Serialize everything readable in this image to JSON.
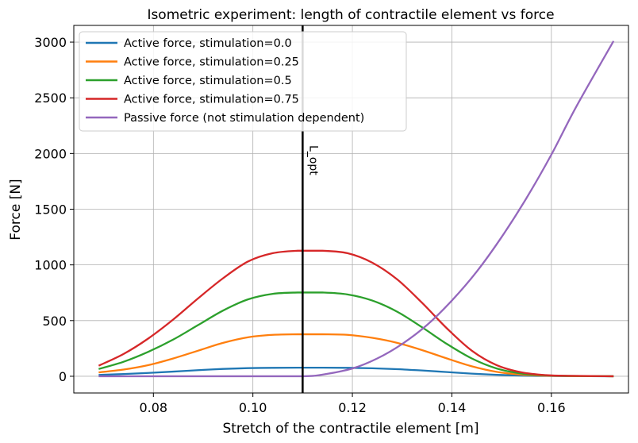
{
  "chart_data": {
    "type": "line",
    "title": "Isometric experiment: length of contractile element vs force",
    "xlabel": "Stretch of the contractile element [m]",
    "ylabel": "Force [N]",
    "xlim": [
      0.064,
      0.1755
    ],
    "ylim": [
      -150,
      3150
    ],
    "xticks": [
      0.08,
      0.1,
      0.12,
      0.14,
      0.16
    ],
    "xtick_labels": [
      "0.08",
      "0.10",
      "0.12",
      "0.14",
      "0.16"
    ],
    "yticks": [
      0,
      500,
      1000,
      1500,
      2000,
      2500,
      3000
    ],
    "ytick_labels": [
      "0",
      "500",
      "1000",
      "1500",
      "2000",
      "2500",
      "3000"
    ],
    "grid": true,
    "legend_position": "top-left",
    "vline": {
      "x": 0.11,
      "label": "L_opt",
      "color": "#000000"
    },
    "series": [
      {
        "name": "Active force, stimulation=0.0",
        "color": "#1f77b4",
        "x": [
          0.069,
          0.074,
          0.079,
          0.084,
          0.089,
          0.094,
          0.099,
          0.104,
          0.109,
          0.114,
          0.119,
          0.124,
          0.129,
          0.134,
          0.139,
          0.144,
          0.149,
          0.154,
          0.159,
          0.164,
          0.1725
        ],
        "y": [
          12,
          20,
          30,
          42,
          55,
          66,
          73,
          76,
          77,
          77,
          76,
          72,
          64,
          52,
          38,
          24,
          13,
          6,
          3,
          1,
          0
        ]
      },
      {
        "name": "Active force, stimulation=0.25",
        "color": "#ff7f0e",
        "x": [
          0.069,
          0.074,
          0.079,
          0.084,
          0.089,
          0.094,
          0.099,
          0.104,
          0.109,
          0.114,
          0.119,
          0.124,
          0.129,
          0.134,
          0.139,
          0.144,
          0.149,
          0.154,
          0.159,
          0.164,
          0.1725
        ],
        "y": [
          35,
          60,
          100,
          160,
          230,
          300,
          350,
          372,
          377,
          377,
          372,
          345,
          300,
          235,
          160,
          90,
          40,
          15,
          5,
          2,
          0
        ]
      },
      {
        "name": "Active force, stimulation=0.5",
        "color": "#2ca02c",
        "x": [
          0.069,
          0.074,
          0.079,
          0.084,
          0.089,
          0.094,
          0.099,
          0.104,
          0.109,
          0.114,
          0.119,
          0.124,
          0.129,
          0.134,
          0.139,
          0.144,
          0.149,
          0.154,
          0.159,
          0.164,
          0.1725
        ],
        "y": [
          65,
          130,
          220,
          330,
          460,
          590,
          690,
          740,
          752,
          752,
          735,
          680,
          580,
          440,
          290,
          160,
          70,
          25,
          8,
          3,
          0
        ]
      },
      {
        "name": "Active force, stimulation=0.75",
        "color": "#d62728",
        "x": [
          0.069,
          0.074,
          0.079,
          0.084,
          0.089,
          0.094,
          0.099,
          0.104,
          0.109,
          0.114,
          0.119,
          0.124,
          0.129,
          0.134,
          0.139,
          0.144,
          0.149,
          0.154,
          0.159,
          0.164,
          0.1725
        ],
        "y": [
          95,
          200,
          340,
          510,
          700,
          880,
          1030,
          1105,
          1127,
          1127,
          1105,
          1020,
          870,
          660,
          430,
          230,
          100,
          35,
          10,
          4,
          0
        ]
      },
      {
        "name": "Passive force (not stimulation dependent)",
        "color": "#9467bd",
        "x": [
          0.069,
          0.08,
          0.09,
          0.1,
          0.11,
          0.114,
          0.12,
          0.125,
          0.13,
          0.135,
          0.14,
          0.145,
          0.15,
          0.155,
          0.16,
          0.165,
          0.1725
        ],
        "y": [
          0,
          0,
          0,
          0,
          0,
          15,
          70,
          160,
          290,
          460,
          680,
          940,
          1250,
          1600,
          1990,
          2420,
          3010
        ]
      }
    ]
  }
}
